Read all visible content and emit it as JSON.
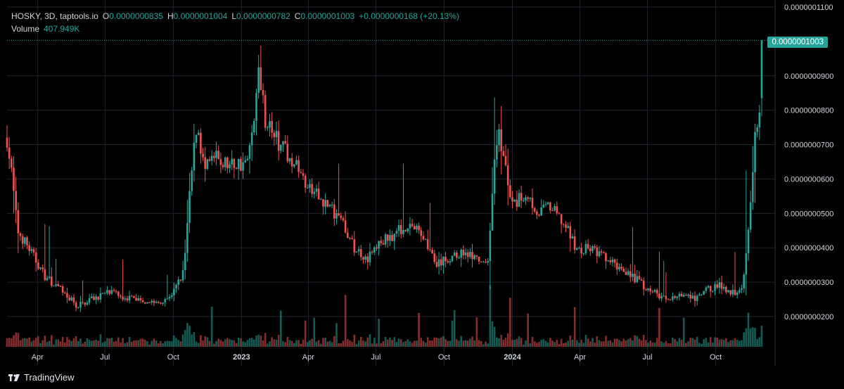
{
  "header": {
    "symbol": "HOSKY, 3D, taptools.io",
    "open_label": "O",
    "open": "0.0000000835",
    "high_label": "H",
    "high": "0.0000001004",
    "low_label": "L",
    "low": "0.0000000782",
    "close_label": "C",
    "close": "0.0000001003",
    "change": "+0.0000000168 (+20.13%)",
    "volume_label": "Volume",
    "volume": "407.949K"
  },
  "current_price_label": "0.0000001003",
  "branding": {
    "name": "TradingView"
  },
  "colors": {
    "up": "#26a69a",
    "down": "#ef5350",
    "background": "#000000",
    "grid": "#1e222d",
    "text": "#d1d4dc"
  },
  "chart_data": {
    "type": "candlestick",
    "interval": "3D",
    "y_axis": {
      "ylim": [
        1.5e-08,
        1.1e-07
      ],
      "ticks": [
        "0.0000001100",
        "0.0000000900",
        "0.0000000800",
        "0.0000000700",
        "0.0000000600",
        "0.0000000500",
        "0.0000000400",
        "0.0000000300",
        "0.0000000200"
      ],
      "tick_values": [
        110,
        90,
        80,
        70,
        60,
        50,
        40,
        30,
        20
      ],
      "unit_multiplier": 1e-09
    },
    "x_axis": {
      "start": "2022-02-19",
      "end": "2024-12-20",
      "ticks": [
        {
          "label": "Apr",
          "date": "2022-04-01"
        },
        {
          "label": "Jul",
          "date": "2022-07-01"
        },
        {
          "label": "Oct",
          "date": "2022-10-01"
        },
        {
          "label": "2023",
          "date": "2023-01-01",
          "bold": true
        },
        {
          "label": "Apr",
          "date": "2023-04-01"
        },
        {
          "label": "Jul",
          "date": "2023-07-01"
        },
        {
          "label": "Oct",
          "date": "2023-10-01"
        },
        {
          "label": "2024",
          "date": "2024-01-01",
          "bold": true
        },
        {
          "label": "Apr",
          "date": "2024-04-01"
        },
        {
          "label": "Jul",
          "date": "2024-07-01"
        },
        {
          "label": "Oct",
          "date": "2024-10-01"
        }
      ]
    },
    "close_anchors": [
      [
        "2022-02-19",
        72
      ],
      [
        "2022-02-26",
        60
      ],
      [
        "2022-03-05",
        45
      ],
      [
        "2022-03-20",
        40
      ],
      [
        "2022-04-10",
        32
      ],
      [
        "2022-05-01",
        28
      ],
      [
        "2022-05-25",
        23
      ],
      [
        "2022-06-10",
        25
      ],
      [
        "2022-07-05",
        27
      ],
      [
        "2022-07-25",
        26
      ],
      [
        "2022-08-15",
        25
      ],
      [
        "2022-09-10",
        24
      ],
      [
        "2022-10-01",
        27
      ],
      [
        "2022-10-15",
        33
      ],
      [
        "2022-10-25",
        60
      ],
      [
        "2022-11-02",
        77
      ],
      [
        "2022-11-12",
        62
      ],
      [
        "2022-11-25",
        66
      ],
      [
        "2022-12-15",
        64
      ],
      [
        "2023-01-10",
        65
      ],
      [
        "2023-01-25",
        92
      ],
      [
        "2023-02-02",
        78
      ],
      [
        "2023-02-20",
        70
      ],
      [
        "2023-03-10",
        66
      ],
      [
        "2023-04-01",
        57
      ],
      [
        "2023-04-25",
        53
      ],
      [
        "2023-05-15",
        48
      ],
      [
        "2023-06-01",
        40
      ],
      [
        "2023-06-20",
        37
      ],
      [
        "2023-07-05",
        41
      ],
      [
        "2023-07-25",
        44
      ],
      [
        "2023-08-15",
        47
      ],
      [
        "2023-09-05",
        43
      ],
      [
        "2023-09-20",
        35
      ],
      [
        "2023-10-10",
        37
      ],
      [
        "2023-10-30",
        39
      ],
      [
        "2023-11-15",
        36
      ],
      [
        "2023-11-28",
        34
      ],
      [
        "2023-12-05",
        55
      ],
      [
        "2023-12-12",
        75
      ],
      [
        "2023-12-20",
        66
      ],
      [
        "2024-01-01",
        52
      ],
      [
        "2024-01-20",
        56
      ],
      [
        "2024-02-05",
        50
      ],
      [
        "2024-02-20",
        52
      ],
      [
        "2024-03-10",
        47
      ],
      [
        "2024-03-30",
        39
      ],
      [
        "2024-04-15",
        40
      ],
      [
        "2024-05-10",
        36
      ],
      [
        "2024-06-05",
        33
      ],
      [
        "2024-06-25",
        29
      ],
      [
        "2024-07-10",
        27
      ],
      [
        "2024-07-25",
        25
      ],
      [
        "2024-08-15",
        26
      ],
      [
        "2024-09-05",
        25
      ],
      [
        "2024-09-20",
        28
      ],
      [
        "2024-10-05",
        29
      ],
      [
        "2024-10-25",
        27
      ],
      [
        "2024-11-05",
        28
      ],
      [
        "2024-11-12",
        40
      ],
      [
        "2024-11-18",
        55
      ],
      [
        "2024-11-24",
        75
      ],
      [
        "2024-11-30",
        84
      ],
      [
        "2024-12-04",
        100.3
      ]
    ],
    "last_candle": {
      "open": 83.5,
      "high": 100.4,
      "low": 78.2,
      "close": 100.3
    },
    "volume_last": "407.949K"
  }
}
